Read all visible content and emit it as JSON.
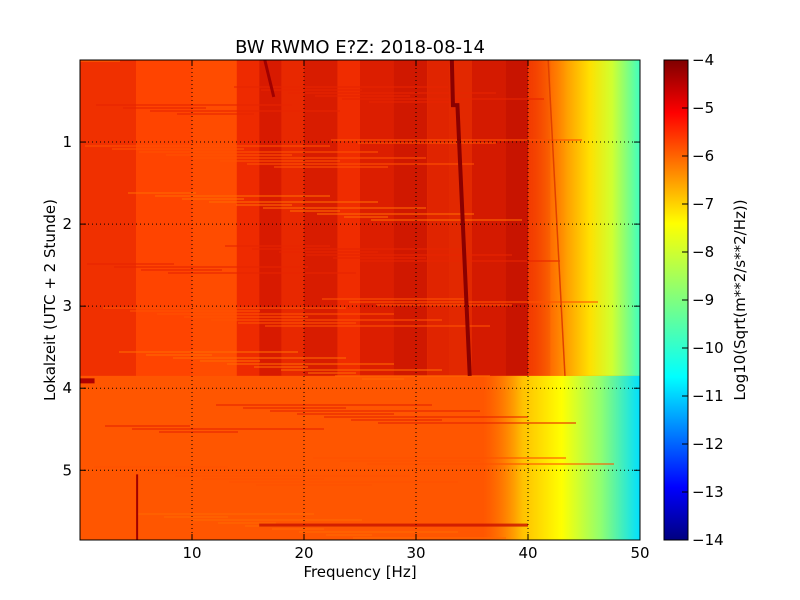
{
  "chart_data": {
    "type": "heatmap",
    "title": "BW RWMO E?Z: 2018-08-14",
    "xlabel": "Frequency [Hz]",
    "ylabel": "Lokalzeit (UTC + 2 Stunde)",
    "xlim": [
      0,
      50
    ],
    "ylim": [
      5.85,
      0
    ],
    "y_inverted": true,
    "x_ticks": [
      10,
      20,
      30,
      40,
      50
    ],
    "y_ticks": [
      1,
      2,
      3,
      4,
      5
    ],
    "grid": true,
    "colormap": "jet",
    "colorbar": {
      "label": "Log10(Sqrt(m**2/s**2/Hz))",
      "range": [
        -14,
        -4
      ],
      "ticks": [
        -4,
        -5,
        -6,
        -7,
        -8,
        -9,
        -10,
        -11,
        -12,
        -13,
        -14
      ]
    },
    "features": [
      {
        "description": "background level 0-40 Hz",
        "value": -6.0
      },
      {
        "description": "strong band 33-35 Hz drifting line",
        "value": -4.2
      },
      {
        "description": "high frequency roll-off 45-50 Hz",
        "value": -9.0
      }
    ]
  },
  "colors": {
    "jet_low": "#00007f",
    "jet_mid": "#7fff7f",
    "jet_high": "#7f0000"
  }
}
